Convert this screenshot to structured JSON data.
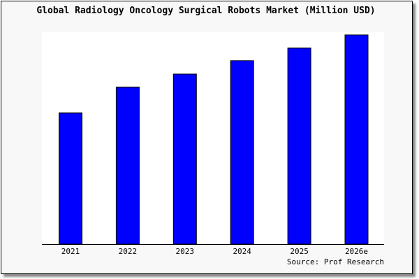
{
  "chart_data": {
    "type": "bar",
    "title": "Global Radiology Oncology Surgical Robots Market (Million USD)",
    "categories": [
      "2021",
      "2022",
      "2023",
      "2024",
      "2025",
      "2026e"
    ],
    "values": [
      62.7,
      75.0,
      81.3,
      87.7,
      93.7,
      100.0
    ],
    "value_note": "relative bar heights (2026e = 100); no value axis is shown",
    "xlabel": "",
    "ylabel": "",
    "ylim": [
      0,
      100
    ],
    "grid": false,
    "source": "Source: Prof Research",
    "colors": {
      "bar": "#0000ff",
      "bar_outline": "#000000",
      "plot_bg": "#ffffff",
      "frame_bg": "#f8f8f8"
    }
  }
}
